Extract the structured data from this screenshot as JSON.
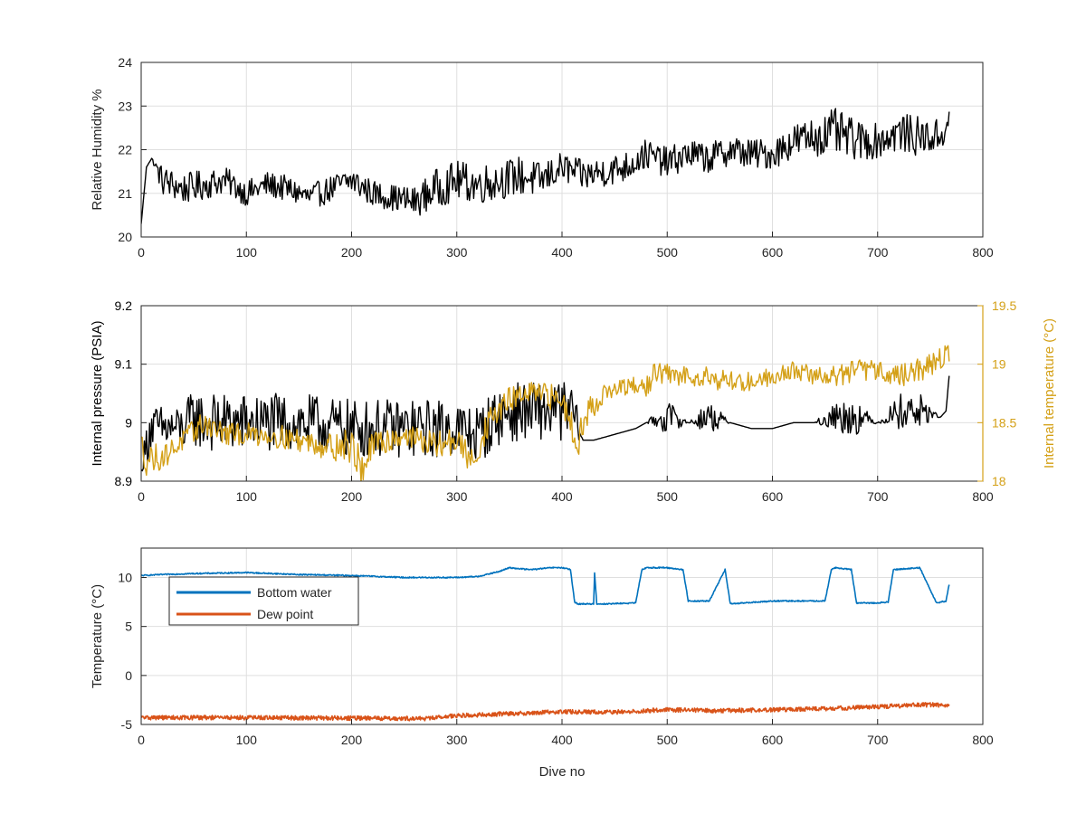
{
  "chart_data": [
    {
      "type": "line",
      "xlabel": "",
      "ylabel": "Relative Humidity %",
      "xlim": [
        0,
        800
      ],
      "ylim": [
        20,
        24
      ],
      "xticks": [
        0,
        100,
        200,
        300,
        400,
        500,
        600,
        700,
        800
      ],
      "yticks": [
        20,
        21,
        22,
        23,
        24
      ],
      "grid": true,
      "series": [
        {
          "color": "#000000",
          "x": [
            0,
            5,
            10,
            20,
            40,
            60,
            80,
            100,
            120,
            140,
            160,
            180,
            200,
            220,
            240,
            260,
            280,
            300,
            320,
            340,
            360,
            380,
            400,
            420,
            440,
            460,
            480,
            500,
            520,
            540,
            560,
            580,
            600,
            620,
            640,
            660,
            680,
            700,
            720,
            740,
            760,
            768
          ],
          "y": [
            20.3,
            21.6,
            21.8,
            21.3,
            21.1,
            21.2,
            21.3,
            21.0,
            21.2,
            21.1,
            20.9,
            21.1,
            21.3,
            21.0,
            20.9,
            20.8,
            21.1,
            21.3,
            21.2,
            21.3,
            21.4,
            21.3,
            21.6,
            21.4,
            21.5,
            21.6,
            21.9,
            21.7,
            21.9,
            21.8,
            22.0,
            21.9,
            21.9,
            22.2,
            22.3,
            22.4,
            22.2,
            22.2,
            22.4,
            22.3,
            22.3,
            22.7
          ],
          "amplitude": [
            0,
            0,
            0,
            0.35,
            0.35,
            0.35,
            0.3,
            0.3,
            0.3,
            0.3,
            0.3,
            0.3,
            0.35,
            0.3,
            0.3,
            0.35,
            0.45,
            0.45,
            0.45,
            0.45,
            0.45,
            0.4,
            0.35,
            0.35,
            0.35,
            0.35,
            0.35,
            0.35,
            0.35,
            0.35,
            0.35,
            0.35,
            0.35,
            0.4,
            0.45,
            0.55,
            0.45,
            0.4,
            0.45,
            0.45,
            0.4,
            0.2
          ]
        }
      ]
    },
    {
      "type": "line",
      "xlabel": "",
      "ylabel": "Internal pressure (PSIA)",
      "ylabel_right": "Internal temperature (°C)",
      "xlim": [
        0,
        800
      ],
      "ylim": [
        8.9,
        9.2
      ],
      "ylim_right": [
        18,
        19.5
      ],
      "xticks": [
        0,
        100,
        200,
        300,
        400,
        500,
        600,
        700,
        800
      ],
      "yticks": [
        "8.9",
        "9",
        "9.1",
        "9.2"
      ],
      "yticks_right": [
        "18",
        "18.5",
        "19",
        "19.5"
      ],
      "grid": true,
      "series": [
        {
          "axis": "left",
          "color": "#000000",
          "x": [
            0,
            4,
            8,
            40,
            50,
            60,
            80,
            100,
            150,
            200,
            250,
            300,
            320,
            340,
            360,
            380,
            400,
            410,
            420,
            430,
            450,
            470,
            480,
            500,
            520,
            540,
            560,
            580,
            600,
            620,
            640,
            660,
            680,
            700,
            720,
            740,
            760,
            765,
            768
          ],
          "y": [
            8.92,
            8.95,
            8.99,
            8.99,
            9.01,
            9.0,
            9.0,
            9.0,
            9.0,
            8.99,
            8.99,
            8.99,
            8.98,
            9.01,
            9.02,
            9.02,
            9.02,
            9.02,
            8.97,
            8.97,
            8.98,
            8.99,
            9.0,
            9.01,
            9.0,
            9.01,
            9.0,
            8.99,
            8.99,
            9.0,
            9.0,
            9.01,
            9.01,
            9.0,
            9.02,
            9.02,
            9.01,
            9.02,
            9.08
          ],
          "amplitude": [
            0,
            0.04,
            0.04,
            0.04,
            0.05,
            0.05,
            0.05,
            0.05,
            0.05,
            0.05,
            0.05,
            0.05,
            0.05,
            0.05,
            0.05,
            0.05,
            0.05,
            0.05,
            0,
            0,
            0,
            0,
            0,
            0.03,
            0,
            0.03,
            0,
            0,
            0,
            0,
            0,
            0.03,
            0.03,
            0,
            0.03,
            0.03,
            0,
            0,
            0
          ]
        },
        {
          "axis": "right",
          "color": "#d4a017",
          "x": [
            0,
            5,
            20,
            40,
            60,
            80,
            100,
            120,
            150,
            180,
            200,
            210,
            220,
            250,
            280,
            300,
            315,
            330,
            350,
            370,
            400,
            415,
            425,
            440,
            460,
            480,
            490,
            500,
            520,
            540,
            560,
            580,
            600,
            620,
            640,
            660,
            680,
            700,
            720,
            740,
            760,
            768
          ],
          "y": [
            18.3,
            18.2,
            18.2,
            18.35,
            18.5,
            18.4,
            18.4,
            18.4,
            18.35,
            18.3,
            18.3,
            18.1,
            18.3,
            18.4,
            18.3,
            18.35,
            18.15,
            18.5,
            18.7,
            18.75,
            18.7,
            18.35,
            18.6,
            18.75,
            18.8,
            18.8,
            18.95,
            18.9,
            18.9,
            18.9,
            18.85,
            18.85,
            18.9,
            18.95,
            18.9,
            18.9,
            18.95,
            18.95,
            18.9,
            18.95,
            19.05,
            19.1
          ],
          "amplitude": [
            0.15,
            0.15,
            0.1,
            0.1,
            0.1,
            0.1,
            0.1,
            0.1,
            0.1,
            0.12,
            0.15,
            0.15,
            0.12,
            0.1,
            0.12,
            0.12,
            0.12,
            0.12,
            0.1,
            0.1,
            0.12,
            0.15,
            0.12,
            0.08,
            0.08,
            0.1,
            0.1,
            0.1,
            0.08,
            0.1,
            0.1,
            0.08,
            0.08,
            0.08,
            0.08,
            0.1,
            0.1,
            0.08,
            0.1,
            0.1,
            0.1,
            0.08
          ]
        }
      ]
    },
    {
      "type": "line",
      "xlabel": "Dive no",
      "ylabel": "Temperature (°C)",
      "xlim": [
        0,
        800
      ],
      "ylim": [
        -5,
        13
      ],
      "xticks": [
        0,
        100,
        200,
        300,
        400,
        500,
        600,
        700,
        800
      ],
      "yticks": [
        -5,
        0,
        5,
        10
      ],
      "grid": true,
      "legend": "top-left",
      "series": [
        {
          "name": "Bottom water",
          "color": "#0072bd",
          "x": [
            0,
            20,
            50,
            100,
            150,
            200,
            250,
            300,
            320,
            340,
            350,
            370,
            390,
            400,
            408,
            412,
            415,
            430,
            431,
            433,
            440,
            470,
            476,
            480,
            500,
            515,
            520,
            540,
            555,
            560,
            600,
            650,
            656,
            660,
            675,
            680,
            700,
            710,
            715,
            740,
            756,
            760,
            765,
            768
          ],
          "y": [
            10.2,
            10.3,
            10.4,
            10.5,
            10.3,
            10.2,
            10.0,
            10.0,
            10.1,
            10.6,
            11.0,
            10.8,
            11.0,
            11.0,
            10.8,
            7.5,
            7.3,
            7.3,
            10.5,
            7.3,
            7.3,
            7.4,
            10.8,
            11.0,
            11.0,
            10.8,
            7.6,
            7.6,
            10.8,
            7.3,
            7.6,
            7.6,
            10.8,
            11.0,
            10.8,
            7.4,
            7.4,
            7.5,
            10.8,
            11.0,
            7.4,
            7.5,
            7.6,
            9.3
          ]
        },
        {
          "name": "Dew point",
          "color": "#d95319",
          "x": [
            0,
            100,
            200,
            270,
            300,
            350,
            400,
            450,
            500,
            550,
            600,
            650,
            700,
            740,
            768
          ],
          "y": [
            -4.3,
            -4.3,
            -4.35,
            -4.4,
            -4.1,
            -3.9,
            -3.7,
            -3.75,
            -3.5,
            -3.6,
            -3.5,
            -3.4,
            -3.2,
            -3.0,
            -3.0
          ]
        }
      ]
    }
  ]
}
